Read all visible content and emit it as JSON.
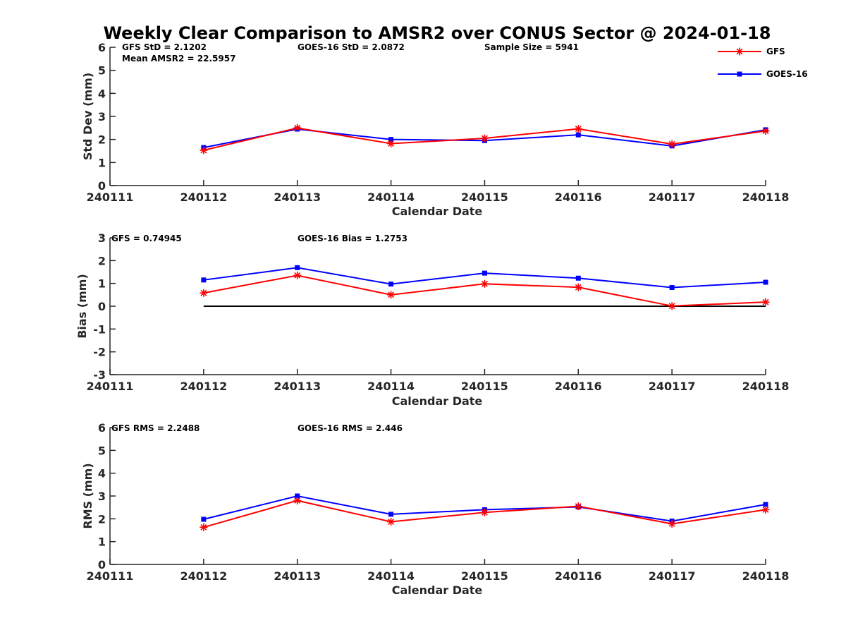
{
  "figure_title": "Weekly Clear Comparison to AMSR2 over CONUS Sector @ 2024-01-18",
  "legend": {
    "placement": "top-right",
    "entries": [
      {
        "label": "GFS",
        "color": "#ff0000",
        "marker": "asterisk"
      },
      {
        "label": "GOES-16",
        "color": "#0000ff",
        "marker": "square"
      }
    ]
  },
  "chart_data": [
    {
      "type": "line",
      "xlabel": "Calendar Date",
      "ylabel": "Std Dev (mm)",
      "x_ticks": [
        "240111",
        "240112",
        "240113",
        "240114",
        "240115",
        "240116",
        "240117",
        "240118"
      ],
      "ylim": [
        0,
        6
      ],
      "y_ticks": [
        "0",
        "1",
        "2",
        "3",
        "4",
        "5",
        "6"
      ],
      "annotations": [
        "GFS StD = 2.1202",
        "Mean AMSR2 = 22.5957",
        "GOES-16 StD = 2.0872",
        "Sample Size = 5941"
      ],
      "series": [
        {
          "name": "GFS",
          "x": [
            "240112",
            "240113",
            "240114",
            "240115",
            "240116",
            "240117",
            "240118"
          ],
          "values": [
            1.53,
            2.5,
            1.82,
            2.05,
            2.46,
            1.8,
            2.37
          ]
        },
        {
          "name": "GOES-16",
          "x": [
            "240112",
            "240113",
            "240114",
            "240115",
            "240116",
            "240117",
            "240118"
          ],
          "values": [
            1.65,
            2.45,
            2.0,
            1.95,
            2.2,
            1.72,
            2.42
          ]
        }
      ]
    },
    {
      "type": "line",
      "xlabel": "Calendar Date",
      "ylabel": "Bias (mm)",
      "x_ticks": [
        "240111",
        "240112",
        "240113",
        "240114",
        "240115",
        "240116",
        "240117",
        "240118"
      ],
      "ylim": [
        -3,
        3
      ],
      "y_ticks": [
        "-3",
        "-2",
        "-1",
        "0",
        "1",
        "2",
        "3"
      ],
      "zero_line_from": "240112",
      "annotations": [
        "GFS = 0.74945",
        "GOES-16 Bias  = 1.2753"
      ],
      "series": [
        {
          "name": "GFS",
          "x": [
            "240112",
            "240113",
            "240114",
            "240115",
            "240116",
            "240117",
            "240118"
          ],
          "values": [
            0.58,
            1.35,
            0.5,
            0.98,
            0.83,
            0.01,
            0.18
          ]
        },
        {
          "name": "GOES-16",
          "x": [
            "240112",
            "240113",
            "240114",
            "240115",
            "240116",
            "240117",
            "240118"
          ],
          "values": [
            1.15,
            1.69,
            0.97,
            1.45,
            1.23,
            0.82,
            1.05
          ]
        }
      ]
    },
    {
      "type": "line",
      "xlabel": "Calendar Date",
      "ylabel": "RMS (mm)",
      "x_ticks": [
        "240111",
        "240112",
        "240113",
        "240114",
        "240115",
        "240116",
        "240117",
        "240118"
      ],
      "ylim": [
        0,
        6
      ],
      "y_ticks": [
        "0",
        "1",
        "2",
        "3",
        "4",
        "5",
        "6"
      ],
      "annotations": [
        "GFS RMS = 2.2488",
        "GOES-16 RMS = 2.446"
      ],
      "series": [
        {
          "name": "GFS",
          "x": [
            "240112",
            "240113",
            "240114",
            "240115",
            "240116",
            "240117",
            "240118"
          ],
          "values": [
            1.63,
            2.8,
            1.87,
            2.28,
            2.55,
            1.78,
            2.4
          ]
        },
        {
          "name": "GOES-16",
          "x": [
            "240112",
            "240113",
            "240114",
            "240115",
            "240116",
            "240117",
            "240118"
          ],
          "values": [
            1.98,
            3.0,
            2.2,
            2.4,
            2.52,
            1.9,
            2.63
          ]
        }
      ]
    }
  ]
}
